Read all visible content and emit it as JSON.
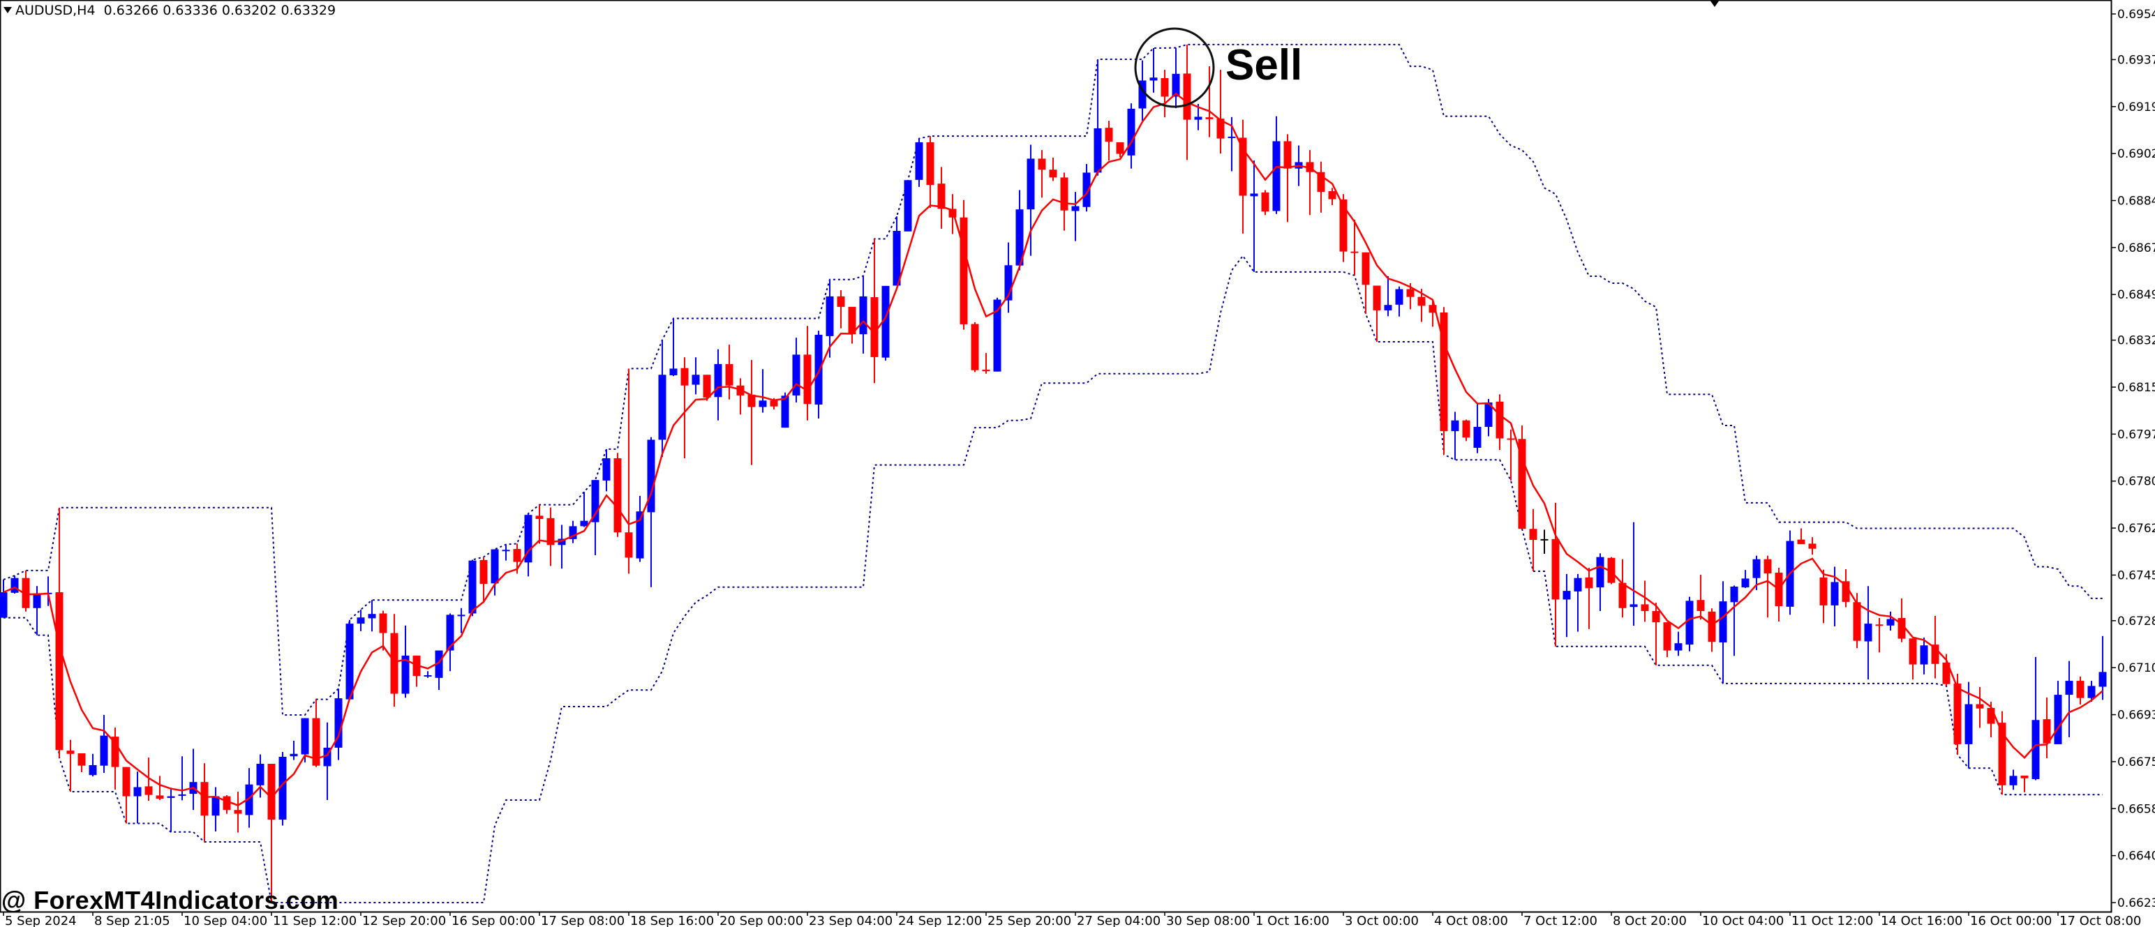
{
  "header": {
    "symbol_timeframe": "AUDUSD,H4",
    "ohlc": "0.63266 0.63336 0.63202 0.63329",
    "menu_icon": "triangle-down-icon"
  },
  "watermark": "@ ForexMT4Indicators.com",
  "annotation": {
    "text": "Sell",
    "shape": "circle"
  },
  "chart_data": {
    "type": "candlestick",
    "ylim": [
      0.6623,
      0.6954
    ],
    "y_ticks": [
      "0.69540",
      "0.69370",
      "0.69195",
      "0.69020",
      "0.68845",
      "0.68670",
      "0.68495",
      "0.68325",
      "0.68150",
      "0.67975",
      "0.67800",
      "0.67625",
      "0.67450",
      "0.67280",
      "0.67105",
      "0.66930",
      "0.66755",
      "0.66580",
      "0.66405",
      "0.66230"
    ],
    "x_ticks": [
      "5 Sep 2024",
      "8 Sep 21:05",
      "10 Sep 04:00",
      "11 Sep 12:00",
      "12 Sep 20:00",
      "16 Sep 00:00",
      "17 Sep 08:00",
      "18 Sep 16:00",
      "20 Sep 00:00",
      "23 Sep 04:00",
      "24 Sep 12:00",
      "25 Sep 20:00",
      "27 Sep 04:00",
      "30 Sep 08:00",
      "1 Oct 16:00",
      "3 Oct 00:00",
      "4 Oct 08:00",
      "7 Oct 12:00",
      "8 Oct 20:00",
      "10 Oct 04:00",
      "11 Oct 12:00",
      "14 Oct 16:00",
      "16 Oct 00:00",
      "17 Oct 08:00"
    ],
    "grid": false,
    "colors": {
      "bull": "#0000ff",
      "bear": "#ff0000",
      "doji": "#000000",
      "moving_average": "#ff0000",
      "channel": "#00008b"
    },
    "candles_ohlc": [
      [
        0.67291,
        0.67433,
        0.67291,
        0.67386
      ],
      [
        0.67384,
        0.67448,
        0.67381,
        0.67439
      ],
      [
        0.67439,
        0.67467,
        0.67314,
        0.67327
      ],
      [
        0.67327,
        0.67409,
        0.67226,
        0.67381
      ],
      [
        0.67382,
        0.67445,
        0.67335,
        0.67384
      ],
      [
        0.67386,
        0.67701,
        0.6677,
        0.66798
      ],
      [
        0.66796,
        0.66836,
        0.66643,
        0.66784
      ],
      [
        0.66786,
        0.66786,
        0.66716,
        0.6674
      ],
      [
        0.66705,
        0.66784,
        0.667,
        0.66742
      ],
      [
        0.6674,
        0.66929,
        0.66713,
        0.66852
      ],
      [
        0.66848,
        0.66882,
        0.66651,
        0.66735
      ],
      [
        0.66735,
        0.66735,
        0.66525,
        0.66626
      ],
      [
        0.66626,
        0.66718,
        0.66525,
        0.6666
      ],
      [
        0.66663,
        0.6677,
        0.66609,
        0.66631
      ],
      [
        0.66629,
        0.66702,
        0.66612,
        0.66617
      ],
      [
        0.6662,
        0.66658,
        0.66493,
        0.66626
      ],
      [
        0.66628,
        0.66775,
        0.66611,
        0.66633
      ],
      [
        0.66635,
        0.66803,
        0.66575,
        0.66679
      ],
      [
        0.66679,
        0.66749,
        0.66456,
        0.66554
      ],
      [
        0.66554,
        0.6666,
        0.66495,
        0.66626
      ],
      [
        0.66626,
        0.6663,
        0.66561,
        0.66575
      ],
      [
        0.66575,
        0.66643,
        0.66491,
        0.66561
      ],
      [
        0.66556,
        0.66731,
        0.66509,
        0.6667
      ],
      [
        0.66667,
        0.66782,
        0.66621,
        0.66747
      ],
      [
        0.66747,
        0.66747,
        0.6623,
        0.66539
      ],
      [
        0.66539,
        0.66791,
        0.66517,
        0.66773
      ],
      [
        0.66775,
        0.66833,
        0.66761,
        0.66784
      ],
      [
        0.66782,
        0.66917,
        0.66752,
        0.66917
      ],
      [
        0.66917,
        0.66987,
        0.66735,
        0.6674
      ],
      [
        0.66738,
        0.66901,
        0.66612,
        0.66807
      ],
      [
        0.66807,
        0.67027,
        0.66761,
        0.66991
      ],
      [
        0.66987,
        0.67283,
        0.66987,
        0.67269
      ],
      [
        0.67269,
        0.67321,
        0.67241,
        0.67292
      ],
      [
        0.67289,
        0.67357,
        0.6724,
        0.67305
      ],
      [
        0.67307,
        0.67317,
        0.67169,
        0.67234
      ],
      [
        0.67234,
        0.67305,
        0.6696,
        0.67008
      ],
      [
        0.67008,
        0.67262,
        0.66993,
        0.6715
      ],
      [
        0.6715,
        0.6715,
        0.67034,
        0.67074
      ],
      [
        0.67076,
        0.67092,
        0.67067,
        0.67077
      ],
      [
        0.67067,
        0.67169,
        0.67022,
        0.67169
      ],
      [
        0.67169,
        0.67307,
        0.67092,
        0.67302
      ],
      [
        0.673,
        0.67327,
        0.67234,
        0.67302
      ],
      [
        0.67307,
        0.67507,
        0.67297,
        0.67504
      ],
      [
        0.67506,
        0.67517,
        0.67349,
        0.67417
      ],
      [
        0.67419,
        0.67546,
        0.67374,
        0.67546
      ],
      [
        0.67542,
        0.67564,
        0.67504,
        0.67544
      ],
      [
        0.67547,
        0.67567,
        0.67455,
        0.67499
      ],
      [
        0.67497,
        0.67679,
        0.67445,
        0.67674
      ],
      [
        0.67671,
        0.67712,
        0.67567,
        0.67659
      ],
      [
        0.67662,
        0.67702,
        0.67484,
        0.67562
      ],
      [
        0.67562,
        0.67637,
        0.67474,
        0.67585
      ],
      [
        0.67584,
        0.67652,
        0.67569,
        0.67632
      ],
      [
        0.67632,
        0.6776,
        0.67629,
        0.67652
      ],
      [
        0.67647,
        0.67804,
        0.67524,
        0.67804
      ],
      [
        0.67802,
        0.67919,
        0.67762,
        0.67885
      ],
      [
        0.67885,
        0.67905,
        0.67592,
        0.67609
      ],
      [
        0.67609,
        0.68219,
        0.67455,
        0.67515
      ],
      [
        0.67512,
        0.67745,
        0.67499,
        0.67687
      ],
      [
        0.67684,
        0.67964,
        0.67405,
        0.67954
      ],
      [
        0.67954,
        0.68326,
        0.6789,
        0.68196
      ],
      [
        0.68194,
        0.68406,
        0.68191,
        0.68219
      ],
      [
        0.68221,
        0.68261,
        0.67885,
        0.68156
      ],
      [
        0.68159,
        0.68261,
        0.68123,
        0.68196
      ],
      [
        0.68196,
        0.68196,
        0.68099,
        0.68111
      ],
      [
        0.68113,
        0.68291,
        0.68026,
        0.68236
      ],
      [
        0.68236,
        0.68308,
        0.68104,
        0.68156
      ],
      [
        0.68156,
        0.68183,
        0.68048,
        0.68119
      ],
      [
        0.68122,
        0.68251,
        0.6786,
        0.68076
      ],
      [
        0.68076,
        0.68217,
        0.68055,
        0.681
      ],
      [
        0.681,
        0.68109,
        0.68067,
        0.68078
      ],
      [
        0.67999,
        0.6813,
        0.67999,
        0.68118
      ],
      [
        0.68119,
        0.68334,
        0.68093,
        0.68271
      ],
      [
        0.68271,
        0.68378,
        0.68026,
        0.68087
      ],
      [
        0.68085,
        0.6836,
        0.68033,
        0.68345
      ],
      [
        0.6834,
        0.68551,
        0.6826,
        0.68488
      ],
      [
        0.68488,
        0.68511,
        0.68369,
        0.68449
      ],
      [
        0.68449,
        0.68449,
        0.68312,
        0.68347
      ],
      [
        0.68347,
        0.68564,
        0.68275,
        0.68488
      ],
      [
        0.68485,
        0.68702,
        0.68165,
        0.68262
      ],
      [
        0.6826,
        0.68527,
        0.68249,
        0.68527
      ],
      [
        0.68528,
        0.68786,
        0.68528,
        0.68732
      ],
      [
        0.6873,
        0.68921,
        0.6873,
        0.68921
      ],
      [
        0.68922,
        0.69076,
        0.68896,
        0.69062
      ],
      [
        0.69062,
        0.69085,
        0.68818,
        0.68903
      ],
      [
        0.68908,
        0.6897,
        0.6874,
        0.68814
      ],
      [
        0.68814,
        0.68869,
        0.6872,
        0.68782
      ],
      [
        0.68782,
        0.68847,
        0.68364,
        0.68384
      ],
      [
        0.68385,
        0.68392,
        0.68206,
        0.68213
      ],
      [
        0.68215,
        0.68277,
        0.682,
        0.68209
      ],
      [
        0.68208,
        0.68483,
        0.68208,
        0.68476
      ],
      [
        0.68473,
        0.68689,
        0.68427,
        0.68604
      ],
      [
        0.68603,
        0.68884,
        0.68585,
        0.68812
      ],
      [
        0.68812,
        0.69053,
        0.68639,
        0.69001
      ],
      [
        0.69001,
        0.69033,
        0.68856,
        0.6896
      ],
      [
        0.6896,
        0.69005,
        0.68918,
        0.68931
      ],
      [
        0.68931,
        0.68949,
        0.68733,
        0.68808
      ],
      [
        0.68806,
        0.68877,
        0.68694,
        0.68824
      ],
      [
        0.68821,
        0.68981,
        0.68804,
        0.68949
      ],
      [
        0.68949,
        0.69371,
        0.68938,
        0.69114
      ],
      [
        0.69116,
        0.69142,
        0.68994,
        0.69064
      ],
      [
        0.69062,
        0.69062,
        0.69006,
        0.69019
      ],
      [
        0.69013,
        0.69207,
        0.68964,
        0.69187
      ],
      [
        0.69188,
        0.69367,
        0.69142,
        0.69292
      ],
      [
        0.69292,
        0.69413,
        0.69247,
        0.69303
      ],
      [
        0.69301,
        0.69332,
        0.69155,
        0.69232
      ],
      [
        0.69232,
        0.69414,
        0.69189,
        0.69317
      ],
      [
        0.69318,
        0.69426,
        0.68996,
        0.69146
      ],
      [
        0.69146,
        0.69205,
        0.69107,
        0.69157
      ],
      [
        0.69155,
        0.69345,
        0.69081,
        0.69148
      ],
      [
        0.6915,
        0.69332,
        0.6902,
        0.69076
      ],
      [
        0.69079,
        0.69156,
        0.68954,
        0.69083
      ],
      [
        0.69079,
        0.69146,
        0.68722,
        0.68863
      ],
      [
        0.68861,
        0.68994,
        0.68579,
        0.68871
      ],
      [
        0.68875,
        0.68884,
        0.68791,
        0.68804
      ],
      [
        0.68806,
        0.69159,
        0.68795,
        0.69066
      ],
      [
        0.69066,
        0.69092,
        0.68765,
        0.68964
      ],
      [
        0.68964,
        0.6905,
        0.68899,
        0.68988
      ],
      [
        0.68988,
        0.69033,
        0.68791,
        0.68951
      ],
      [
        0.68951,
        0.6899,
        0.688,
        0.68877
      ],
      [
        0.6888,
        0.68892,
        0.68828,
        0.6885
      ],
      [
        0.68849,
        0.68869,
        0.68616,
        0.68655
      ],
      [
        0.68655,
        0.68774,
        0.68566,
        0.68651
      ],
      [
        0.68652,
        0.68652,
        0.68423,
        0.68531
      ],
      [
        0.68528,
        0.68528,
        0.68319,
        0.68436
      ],
      [
        0.68436,
        0.68563,
        0.68414,
        0.68456
      ],
      [
        0.68457,
        0.68525,
        0.68413,
        0.68515
      ],
      [
        0.68515,
        0.68537,
        0.6844,
        0.68486
      ],
      [
        0.68486,
        0.68516,
        0.68393,
        0.68453
      ],
      [
        0.68456,
        0.6847,
        0.68375,
        0.68427
      ],
      [
        0.68428,
        0.68448,
        0.67899,
        0.67986
      ],
      [
        0.67986,
        0.68058,
        0.67879,
        0.68026
      ],
      [
        0.68026,
        0.68029,
        0.67949,
        0.67962
      ],
      [
        0.67924,
        0.6809,
        0.67904,
        0.68002
      ],
      [
        0.68002,
        0.68106,
        0.67967,
        0.68093
      ],
      [
        0.68096,
        0.68123,
        0.67916,
        0.67959
      ],
      [
        0.67959,
        0.67992,
        0.67802,
        0.67954
      ],
      [
        0.67957,
        0.68007,
        0.67622,
        0.67622
      ],
      [
        0.67622,
        0.67696,
        0.67464,
        0.67581
      ],
      [
        0.67584,
        0.67619,
        0.67529,
        0.67584
      ],
      [
        0.67584,
        0.67719,
        0.67184,
        0.67359
      ],
      [
        0.67359,
        0.67454,
        0.67219,
        0.67391
      ],
      [
        0.67389,
        0.67454,
        0.67239,
        0.67439
      ],
      [
        0.67441,
        0.67477,
        0.67249,
        0.67401
      ],
      [
        0.67404,
        0.67531,
        0.67316,
        0.67517
      ],
      [
        0.67514,
        0.67517,
        0.67416,
        0.67421
      ],
      [
        0.67421,
        0.67509,
        0.67292,
        0.67327
      ],
      [
        0.67331,
        0.67647,
        0.67261,
        0.67341
      ],
      [
        0.67341,
        0.67429,
        0.67276,
        0.67316
      ],
      [
        0.67316,
        0.67347,
        0.67114,
        0.67274
      ],
      [
        0.67274,
        0.67274,
        0.67144,
        0.67169
      ],
      [
        0.67169,
        0.67239,
        0.67149,
        0.67196
      ],
      [
        0.67191,
        0.67369,
        0.67166,
        0.67354
      ],
      [
        0.67357,
        0.67451,
        0.67284,
        0.67316
      ],
      [
        0.67314,
        0.67326,
        0.67164,
        0.67201
      ],
      [
        0.67199,
        0.67427,
        0.67046,
        0.67352
      ],
      [
        0.67349,
        0.67411,
        0.67149,
        0.67407
      ],
      [
        0.67404,
        0.67469,
        0.67402,
        0.67437
      ],
      [
        0.67439,
        0.67522,
        0.67394,
        0.67509
      ],
      [
        0.67509,
        0.67522,
        0.67292,
        0.67456
      ],
      [
        0.67459,
        0.67477,
        0.67277,
        0.67334
      ],
      [
        0.67332,
        0.67616,
        0.67302,
        0.67577
      ],
      [
        0.67582,
        0.67624,
        0.67565,
        0.67565
      ],
      [
        0.67567,
        0.67591,
        0.67526,
        0.67548
      ],
      [
        0.67441,
        0.6747,
        0.67271,
        0.67337
      ],
      [
        0.67337,
        0.67481,
        0.67259,
        0.67424
      ],
      [
        0.67427,
        0.67472,
        0.6733,
        0.6735
      ],
      [
        0.67349,
        0.67383,
        0.67178,
        0.67205
      ],
      [
        0.67203,
        0.67409,
        0.67061,
        0.67269
      ],
      [
        0.67266,
        0.6729,
        0.67162,
        0.67265
      ],
      [
        0.67262,
        0.67314,
        0.67243,
        0.67286
      ],
      [
        0.6729,
        0.67363,
        0.672,
        0.67213
      ],
      [
        0.67214,
        0.67214,
        0.67061,
        0.67117
      ],
      [
        0.67117,
        0.67217,
        0.6708,
        0.67188
      ],
      [
        0.67191,
        0.67298,
        0.67065,
        0.67119
      ],
      [
        0.67124,
        0.67156,
        0.67037,
        0.67044
      ],
      [
        0.67046,
        0.67082,
        0.66781,
        0.6682
      ],
      [
        0.6682,
        0.67052,
        0.66731,
        0.66969
      ],
      [
        0.66969,
        0.67033,
        0.66881,
        0.66953
      ],
      [
        0.66955,
        0.66978,
        0.66846,
        0.66896
      ],
      [
        0.669,
        0.66943,
        0.66632,
        0.66667
      ],
      [
        0.66667,
        0.66725,
        0.6665,
        0.66702
      ],
      [
        0.66703,
        0.66703,
        0.66641,
        0.66693
      ],
      [
        0.6669,
        0.67145,
        0.66686,
        0.6691
      ],
      [
        0.66913,
        0.66994,
        0.66768,
        0.66823
      ],
      [
        0.6682,
        0.67056,
        0.6682,
        0.67004
      ],
      [
        0.67004,
        0.6713,
        0.66846,
        0.67056
      ],
      [
        0.67056,
        0.67072,
        0.66968,
        0.66992
      ],
      [
        0.66992,
        0.67056,
        0.66978,
        0.67037
      ],
      [
        0.67034,
        0.67223,
        0.66985,
        0.67089
      ]
    ]
  }
}
